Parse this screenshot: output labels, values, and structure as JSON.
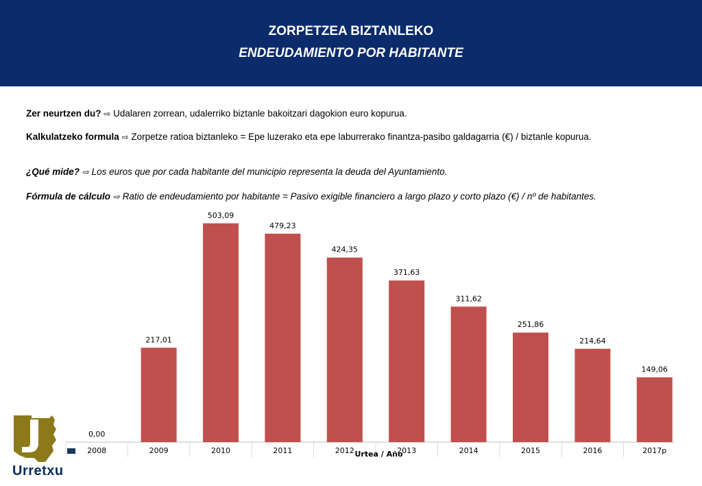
{
  "header": {
    "title_eu": "ZORPETZEA BIZTANLEKO",
    "title_es": "ENDEUDAMIENTO POR HABITANTE"
  },
  "description": {
    "q_eu_label": "Zer neurtzen du?",
    "q_eu_text": "Udalaren zorrean, udalerriko biztanle bakoitzari dagokion euro kopurua.",
    "f_eu_label": "Kalkulatzeko formula",
    "f_eu_text": "Zorpetze ratioa biztanleko  = Epe luzerako eta epe laburrerako finantza-pasibo galdagarria (€) / biztanle kopurua.",
    "q_es_label": "¿Qué mide?",
    "q_es_text": "Los euros que por cada habitante del municipio representa la deuda del Ayuntamiento.",
    "f_es_label": "Fórmula de cálculo",
    "f_es_text": "Ratio de endeudamiento por habitante = Pasivo exigible financiero a largo plazo y corto plazo (€) / nº de habitantes.",
    "arrow_icon": "⇨"
  },
  "chart_data": {
    "type": "bar",
    "categories": [
      "2008",
      "2009",
      "2010",
      "2011",
      "2012",
      "2013",
      "2014",
      "2015",
      "2016",
      "2017p"
    ],
    "values": [
      0.0,
      217.01,
      503.09,
      479.23,
      424.35,
      371.63,
      311.62,
      251.86,
      214.64,
      149.06
    ],
    "value_labels": [
      "0,00",
      "217,01",
      "503,09",
      "479,23",
      "424,35",
      "371,63",
      "311,62",
      "251,86",
      "214,64",
      "149,06"
    ],
    "xlabel": "Urtea / Año",
    "bar_color": "#c0504d",
    "legend_color": "#17375e",
    "ylim": [
      0,
      550
    ]
  },
  "logo": {
    "name": "Urretxu",
    "colors": {
      "gold": "#8c7a1a",
      "dark": "#3b3416"
    }
  }
}
